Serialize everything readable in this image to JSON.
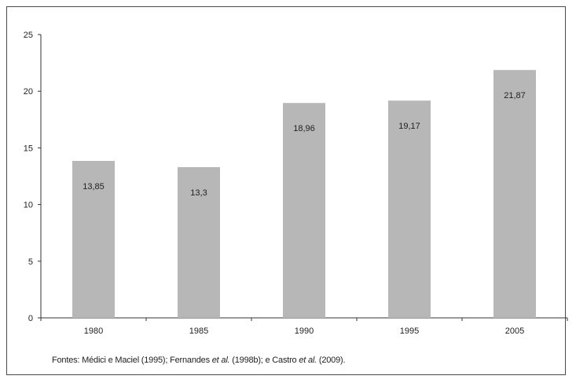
{
  "chart_data": {
    "type": "bar",
    "title": "",
    "xlabel": "",
    "ylabel": "",
    "categories": [
      "1980",
      "1985",
      "1990",
      "1995",
      "2005"
    ],
    "values": [
      13.85,
      13.3,
      18.96,
      19.17,
      21.87
    ],
    "value_labels": [
      "13,85",
      "13,3",
      "18,96",
      "19,17",
      "21,87"
    ],
    "ylim": [
      0,
      25
    ],
    "yticks": [
      0,
      5,
      10,
      15,
      20,
      25
    ],
    "ytick_labels": [
      "0",
      "5",
      "10",
      "15",
      "20",
      "25"
    ],
    "grid": false,
    "legend": "none",
    "bar_color": "#b7b7b7"
  },
  "source": {
    "prefix": "Fontes: Médici e Maciel (1995); Fernandes ",
    "etal1": "et al.",
    "middle": " (1998b); e Castro ",
    "etal2": "et al.",
    "suffix": " (2009)."
  }
}
